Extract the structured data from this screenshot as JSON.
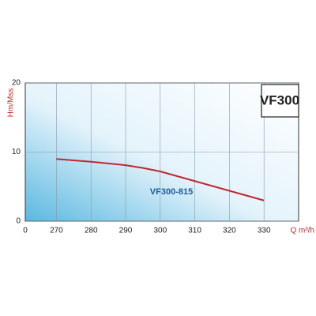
{
  "chart_data": {
    "type": "line",
    "title": "VF300",
    "x": [
      270,
      280,
      290,
      295,
      300,
      310,
      320,
      330
    ],
    "series": [
      {
        "name": "VF300-815",
        "color": "#c0282d",
        "values": [
          9.0,
          8.6,
          8.1,
          7.7,
          7.2,
          5.8,
          4.4,
          3.0
        ]
      }
    ],
    "xlim": [
      261,
      340
    ],
    "xticks": [
      270,
      280,
      290,
      300,
      310,
      320,
      330
    ],
    "x_origin_label": "0",
    "ylim": [
      0,
      20
    ],
    "yticks": [
      0,
      10,
      20
    ],
    "xlabel": "Q m³/h",
    "ylabel": "Hm/Mss",
    "grid": true
  }
}
